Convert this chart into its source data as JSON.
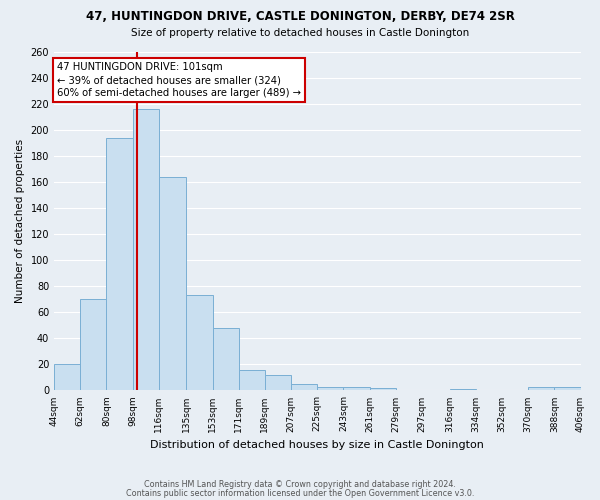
{
  "title": "47, HUNTINGDON DRIVE, CASTLE DONINGTON, DERBY, DE74 2SR",
  "subtitle": "Size of property relative to detached houses in Castle Donington",
  "xlabel": "Distribution of detached houses by size in Castle Donington",
  "ylabel": "Number of detached properties",
  "bar_values": [
    20,
    70,
    194,
    216,
    164,
    73,
    48,
    16,
    12,
    5,
    3,
    3,
    2,
    0,
    0,
    1,
    0,
    0,
    3,
    3,
    0
  ],
  "bin_edges": [
    44,
    62,
    80,
    98,
    116,
    135,
    153,
    171,
    189,
    207,
    225,
    243,
    261,
    279,
    297,
    316,
    334,
    352,
    370,
    388,
    406
  ],
  "bin_labels": [
    "44sqm",
    "62sqm",
    "80sqm",
    "98sqm",
    "116sqm",
    "135sqm",
    "153sqm",
    "171sqm",
    "189sqm",
    "207sqm",
    "225sqm",
    "243sqm",
    "261sqm",
    "279sqm",
    "297sqm",
    "316sqm",
    "334sqm",
    "352sqm",
    "370sqm",
    "388sqm",
    "406sqm"
  ],
  "bar_color": "#c9dff0",
  "bar_edge_color": "#7aafd4",
  "vline_x": 101,
  "vline_color": "#cc0000",
  "annotation_title": "47 HUNTINGDON DRIVE: 101sqm",
  "annotation_line1": "← 39% of detached houses are smaller (324)",
  "annotation_line2": "60% of semi-detached houses are larger (489) →",
  "annotation_box_color": "#cc0000",
  "ylim": [
    0,
    260
  ],
  "yticks": [
    0,
    20,
    40,
    60,
    80,
    100,
    120,
    140,
    160,
    180,
    200,
    220,
    240,
    260
  ],
  "background_color": "#e8eef4",
  "grid_color": "#ffffff",
  "footer1": "Contains HM Land Registry data © Crown copyright and database right 2024.",
  "footer2": "Contains public sector information licensed under the Open Government Licence v3.0."
}
